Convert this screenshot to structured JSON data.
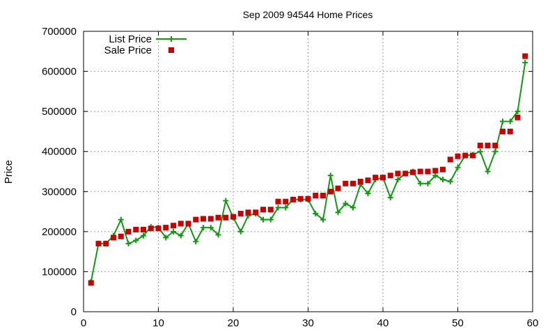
{
  "chart_data": {
    "type": "line",
    "title": "Sep 2009 94544 Home Prices",
    "xlabel": "",
    "ylabel": "Price",
    "xlim": [
      0,
      60
    ],
    "ylim": [
      0,
      700000
    ],
    "xticks": [
      0,
      10,
      20,
      30,
      40,
      50,
      60
    ],
    "yticks": [
      0,
      100000,
      200000,
      300000,
      400000,
      500000,
      600000,
      700000
    ],
    "grid": true,
    "legend_position": "top-left",
    "x": [
      1,
      2,
      3,
      4,
      5,
      6,
      7,
      8,
      9,
      10,
      11,
      12,
      13,
      14,
      15,
      16,
      17,
      18,
      19,
      20,
      21,
      22,
      23,
      24,
      25,
      26,
      27,
      28,
      29,
      30,
      31,
      32,
      33,
      34,
      35,
      36,
      37,
      38,
      39,
      40,
      41,
      42,
      43,
      44,
      45,
      46,
      47,
      48,
      49,
      50,
      51,
      52,
      53,
      54,
      55,
      56,
      57,
      58,
      59
    ],
    "series": [
      {
        "name": "List Price",
        "style": "linespoints",
        "color": "#109a10",
        "values": [
          75000,
          170000,
          170000,
          190000,
          230000,
          170000,
          178000,
          190000,
          212000,
          210000,
          185000,
          200000,
          190000,
          220000,
          175000,
          210000,
          210000,
          192000,
          277000,
          235000,
          200000,
          240000,
          245000,
          230000,
          230000,
          260000,
          260000,
          280000,
          280000,
          280000,
          245000,
          230000,
          340000,
          248000,
          270000,
          260000,
          318000,
          295000,
          330000,
          335000,
          285000,
          330000,
          345000,
          350000,
          320000,
          320000,
          340000,
          330000,
          325000,
          360000,
          390000,
          392000,
          400000,
          350000,
          400000,
          475000,
          475000,
          500000,
          622000
        ]
      },
      {
        "name": "Sale Price",
        "style": "points",
        "color": "#c80000",
        "values": [
          72000,
          170000,
          170000,
          185000,
          188000,
          200000,
          205000,
          205000,
          208000,
          208000,
          210000,
          215000,
          220000,
          220000,
          230000,
          232000,
          232000,
          235000,
          235000,
          237000,
          245000,
          248000,
          248000,
          255000,
          255000,
          275000,
          275000,
          280000,
          282000,
          282000,
          290000,
          290000,
          300000,
          308000,
          320000,
          320000,
          325000,
          328000,
          335000,
          335000,
          340000,
          345000,
          345000,
          348000,
          350000,
          350000,
          352000,
          355000,
          380000,
          388000,
          390000,
          390000,
          415000,
          415000,
          415000,
          450000,
          450000,
          485000,
          638000
        ]
      }
    ]
  }
}
